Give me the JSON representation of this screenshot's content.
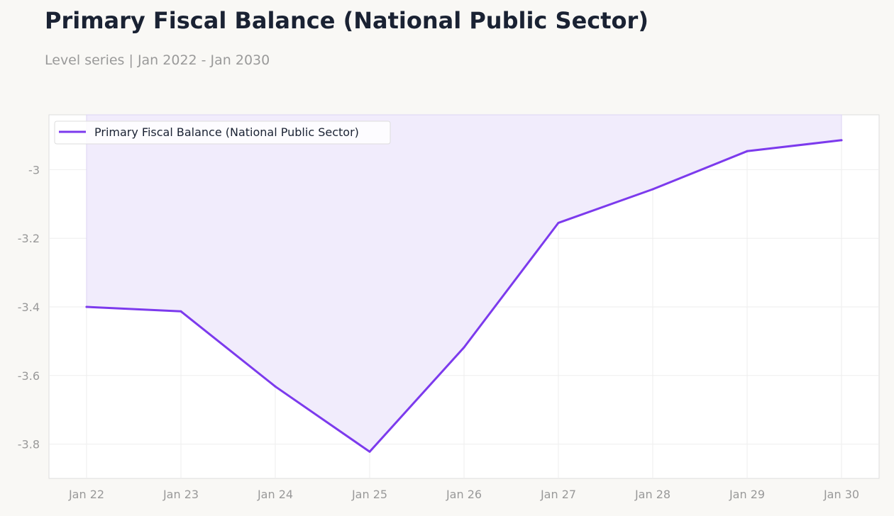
{
  "header": {
    "title": "Primary Fiscal Balance (National Public Sector)",
    "subtitle": "Level series | Jan 2022 - Jan 2030"
  },
  "chart_data": {
    "type": "area",
    "title": "Primary Fiscal Balance (National Public Sector)",
    "subtitle": "Level series | Jan 2022 - Jan 2030",
    "xlabel": "",
    "ylabel": "",
    "x": [
      "Jan 22",
      "Jan 23",
      "Jan 24",
      "Jan 25",
      "Jan 26",
      "Jan 27",
      "Jan 28",
      "Jan 29",
      "Jan 30"
    ],
    "series": [
      {
        "name": "Primary Fiscal Balance (National Public Sector)",
        "values": [
          -3.4,
          -3.413,
          -3.632,
          -3.822,
          -3.518,
          -3.155,
          -3.057,
          -2.946,
          -2.914
        ],
        "color": "#7c3aed",
        "fill": "#f1ecfc"
      }
    ],
    "ylim": [
      -3.9,
      -2.84
    ],
    "yticks": [
      -3.8,
      -3.6,
      -3.4,
      -3.2,
      -3
    ],
    "ytick_labels": [
      "-3.8",
      "-3.6",
      "-3.4",
      "-3.2",
      "-3"
    ],
    "grid": true,
    "legend": "top-left"
  }
}
